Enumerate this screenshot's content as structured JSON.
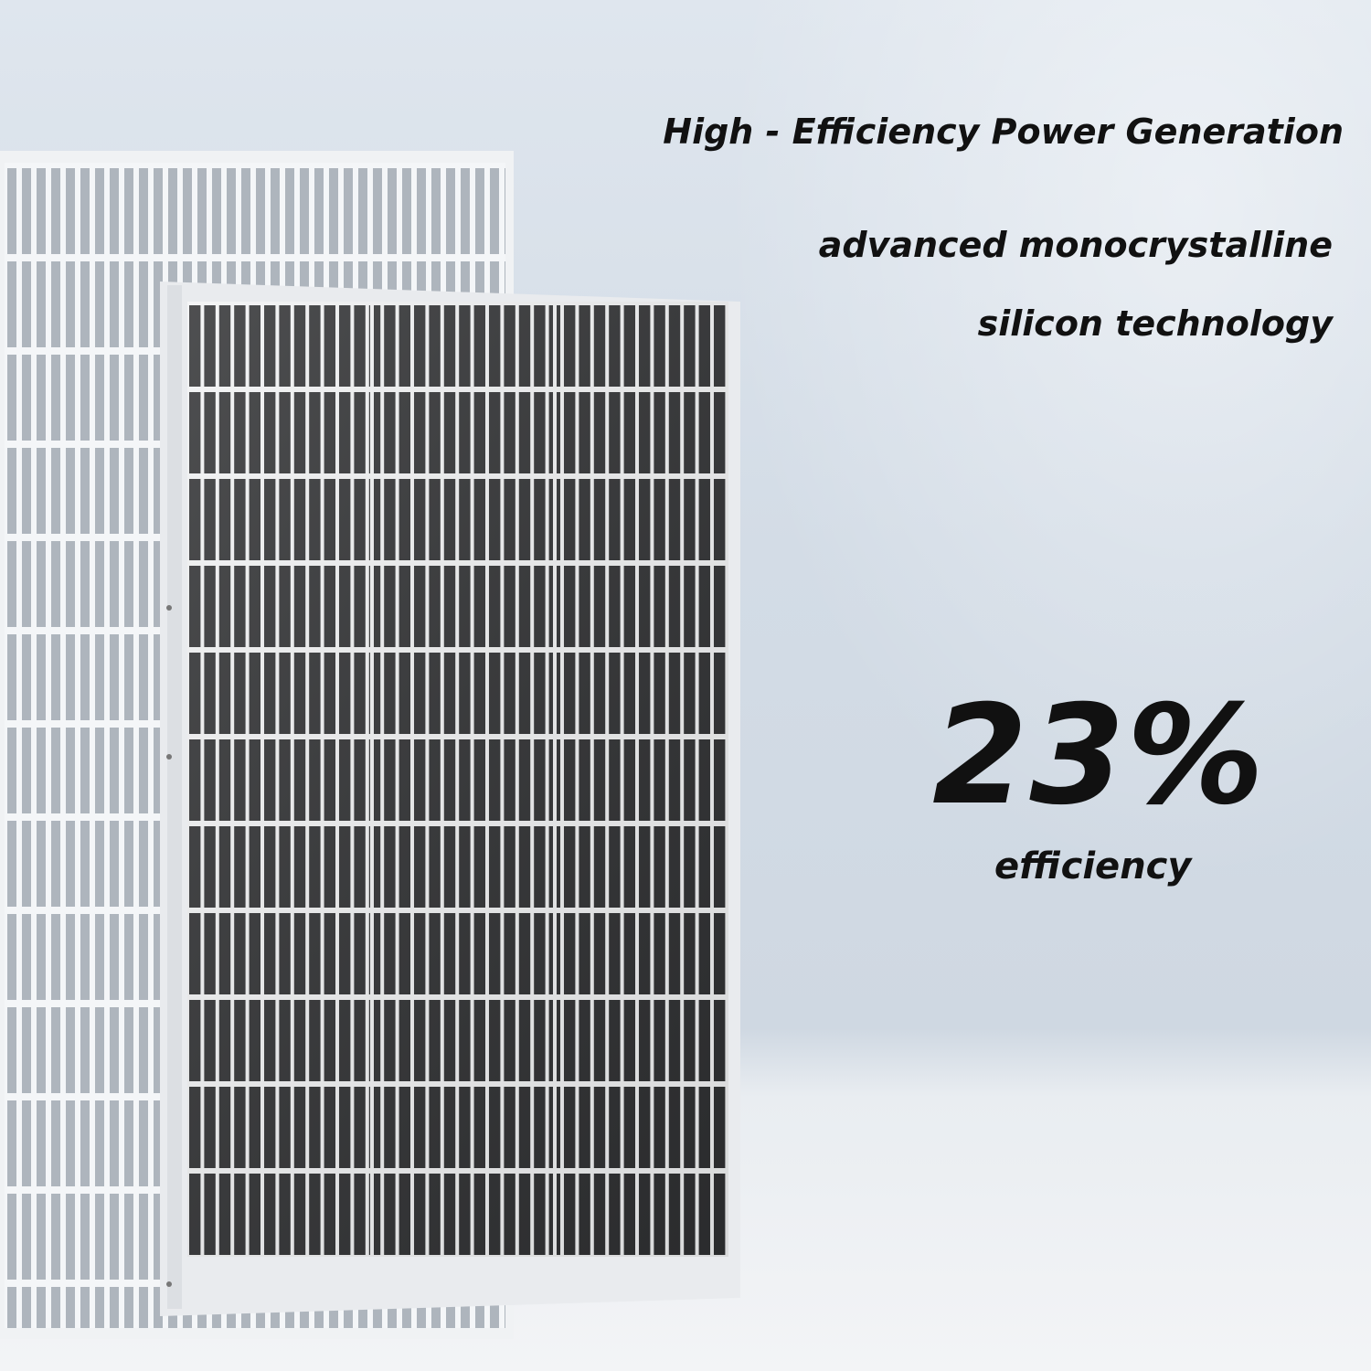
{
  "headline": "High - Efficiency Power Generation",
  "subline_1": "advanced monocrystalline",
  "subline_2": "silicon technology",
  "efficiency_value": "23%",
  "efficiency_label": "efficiency",
  "colors": {
    "cell": "#2e2f31",
    "frame": "#eef0f2",
    "background": "#d6dee7",
    "text": "#111111"
  }
}
